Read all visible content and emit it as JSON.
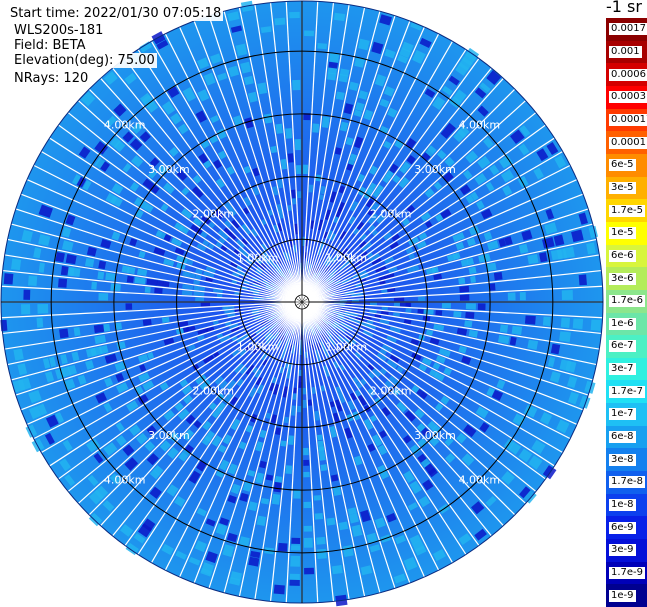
{
  "header": {
    "start_time": "Start time: 2022/01/30 07:05:18",
    "instrument": "WLS200s-181",
    "field": "Field: BETA",
    "elevation": "Elevation(deg): 75.00",
    "nrays": "NRays: 120"
  },
  "colorbar": {
    "title": "-1 sr",
    "levels": [
      {
        "label": "0.0017",
        "color": "#8b0000"
      },
      {
        "label": "0.001",
        "color": "#a80000"
      },
      {
        "label": "0.0006",
        "color": "#d40000"
      },
      {
        "label": "0.0003",
        "color": "#ff0000"
      },
      {
        "label": "0.00017",
        "color": "#ff3a00"
      },
      {
        "label": "0.0001",
        "color": "#ff6000"
      },
      {
        "label": "6e-5",
        "color": "#ff8c00"
      },
      {
        "label": "3e-5",
        "color": "#ffb000"
      },
      {
        "label": "1.7e-5",
        "color": "#ffd600"
      },
      {
        "label": "1e-5",
        "color": "#ffff00"
      },
      {
        "label": "6e-6",
        "color": "#d8f53c"
      },
      {
        "label": "3e-6",
        "color": "#b4ec5a"
      },
      {
        "label": "1.7e-6",
        "color": "#8ce68c"
      },
      {
        "label": "1e-6",
        "color": "#6ce6a8"
      },
      {
        "label": "6e-7",
        "color": "#4cf0c4"
      },
      {
        "label": "3e-7",
        "color": "#30f0e0"
      },
      {
        "label": "1.7e-7",
        "color": "#20e0f4"
      },
      {
        "label": "1e-7",
        "color": "#1ec0f4"
      },
      {
        "label": "6e-8",
        "color": "#18a0f0"
      },
      {
        "label": "3e-8",
        "color": "#1480ee"
      },
      {
        "label": "1.7e-8",
        "color": "#1060ee"
      },
      {
        "label": "1e-8",
        "color": "#0c40ee"
      },
      {
        "label": "6e-9",
        "color": "#0820e8"
      },
      {
        "label": "3e-9",
        "color": "#0410d8"
      },
      {
        "label": "1.7e-9",
        "color": "#0000b8"
      },
      {
        "label": "1e-9",
        "color": "#000090"
      }
    ]
  },
  "chart_data": {
    "type": "polar-ppi",
    "nrays": 120,
    "max_range_km": 4.8,
    "range_ring_labels_km": [
      "1.00km",
      "2.00km",
      "3.00km",
      "4.00km"
    ],
    "range_rings_km": [
      1,
      2,
      3,
      4
    ],
    "grid_lines": "N-S and E-W through center",
    "dominant_values": [
      "1e-8",
      "3e-8",
      "6e-8"
    ],
    "colors": {
      "near_field": "#1a3cf0",
      "mid_field": "#1e64ee",
      "far_field": "#1e96ee",
      "speckle_light": "#22b4f0",
      "speckle_dark": "#0a18c8",
      "gap": "#ffffff",
      "ring": "#000000",
      "ring_label": "#ffffff"
    }
  }
}
